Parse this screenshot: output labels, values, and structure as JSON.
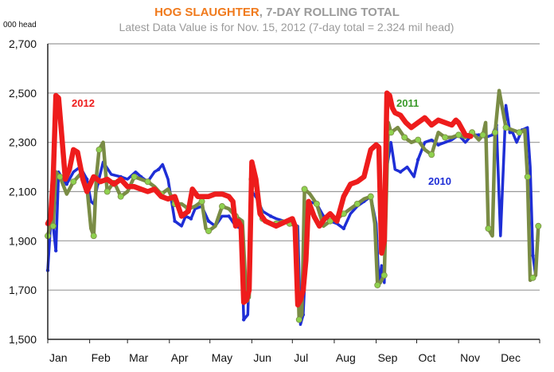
{
  "chart_data": {
    "type": "line",
    "title_part1": "HOG SLAUGHTER",
    "title_part2": ", 7-DAY ROLLING TOTAL",
    "subtitle": "Latest Data Value is for Nov. 15, 2012 (7-day total = 2.324 mil head)",
    "ylabel": "000 head",
    "ylim": [
      1500,
      2700
    ],
    "yticks": [
      "1,500",
      "1,700",
      "1,900",
      "2,100",
      "2,300",
      "2,500",
      "2,700"
    ],
    "ytick_values": [
      1500,
      1700,
      1900,
      2100,
      2300,
      2500,
      2700
    ],
    "months": [
      "Jan",
      "Feb",
      "Mar",
      "Apr",
      "May",
      "Jun",
      "Jul",
      "Aug",
      "Sep",
      "Oct",
      "Nov",
      "Dec"
    ],
    "xlim": [
      1,
      365
    ],
    "grid": true,
    "series": [
      {
        "name": "2010",
        "color": "#1e2ed6",
        "x": [
          1,
          3,
          5,
          7,
          9,
          12,
          15,
          20,
          25,
          30,
          33,
          35,
          38,
          42,
          48,
          55,
          60,
          66,
          70,
          75,
          80,
          83,
          86,
          90,
          95,
          100,
          103,
          107,
          110,
          115,
          120,
          125,
          130,
          135,
          140,
          144,
          146,
          149,
          152,
          155,
          160,
          163,
          166,
          170,
          176,
          182,
          186,
          188,
          190,
          194,
          200,
          205,
          210,
          215,
          220,
          225,
          230,
          235,
          240,
          244,
          246,
          248,
          250,
          252,
          255,
          258,
          262,
          267,
          272,
          275,
          280,
          285,
          290,
          295,
          300,
          305,
          310,
          315,
          320,
          325,
          330,
          333,
          336,
          340,
          343,
          345,
          348,
          352,
          356,
          358,
          360,
          362,
          364
        ],
        "y": [
          1780,
          1960,
          1960,
          1860,
          2180,
          2150,
          2130,
          2180,
          2200,
          2150,
          2060,
          2050,
          2130,
          2220,
          2170,
          2160,
          2150,
          2180,
          2160,
          2140,
          2180,
          2190,
          2210,
          2150,
          1980,
          1960,
          2000,
          1990,
          2030,
          2040,
          1980,
          1960,
          2000,
          2000,
          1960,
          1950,
          1580,
          1600,
          2100,
          2080,
          2020,
          2010,
          2000,
          1990,
          1980,
          1970,
          1960,
          1560,
          1600,
          2060,
          2050,
          2000,
          1980,
          1970,
          1950,
          2010,
          2040,
          2060,
          2080,
          1970,
          1720,
          1800,
          1730,
          2200,
          2300,
          2190,
          2180,
          2200,
          2160,
          2230,
          2300,
          2310,
          2290,
          2300,
          2310,
          2330,
          2300,
          2330,
          2330,
          2320,
          2330,
          2370,
          1920,
          2450,
          2340,
          2340,
          2300,
          2350,
          2360,
          2200,
          1840,
          1760,
          1960
        ]
      },
      {
        "name": "2011",
        "color": "#7a8c45",
        "marker_color": "#8fd14f",
        "x": [
          1,
          3,
          5,
          7,
          10,
          15,
          20,
          25,
          30,
          33,
          35,
          37,
          39,
          42,
          45,
          50,
          55,
          60,
          65,
          70,
          75,
          80,
          85,
          90,
          95,
          100,
          105,
          110,
          115,
          118,
          120,
          125,
          130,
          135,
          140,
          145,
          148,
          150,
          152,
          155,
          160,
          165,
          170,
          175,
          180,
          185,
          187,
          189,
          191,
          195,
          200,
          205,
          210,
          215,
          220,
          225,
          230,
          235,
          240,
          243,
          245,
          247,
          250,
          253,
          255,
          260,
          265,
          270,
          275,
          280,
          285,
          290,
          295,
          300,
          305,
          310,
          315,
          320,
          323,
          325,
          327,
          330,
          332,
          335,
          340,
          345,
          350,
          354,
          356,
          358,
          360,
          362,
          364
        ],
        "y": [
          1920,
          1970,
          1960,
          2180,
          2160,
          2090,
          2140,
          2170,
          2120,
          1950,
          1920,
          2160,
          2270,
          2300,
          2100,
          2140,
          2080,
          2100,
          2160,
          2150,
          2140,
          2120,
          2090,
          2110,
          2050,
          2050,
          2030,
          2040,
          2060,
          1950,
          1940,
          1960,
          2040,
          2030,
          2000,
          1980,
          1660,
          1670,
          2150,
          2120,
          1990,
          1970,
          1970,
          1980,
          1970,
          1960,
          1580,
          1600,
          2110,
          2090,
          2050,
          1960,
          1980,
          1990,
          2010,
          2030,
          2050,
          2070,
          2080,
          1970,
          1720,
          1730,
          1760,
          2380,
          2340,
          2360,
          2320,
          2300,
          2310,
          2270,
          2250,
          2340,
          2320,
          2320,
          2330,
          2320,
          2340,
          2310,
          2330,
          2380,
          1950,
          1920,
          2340,
          2510,
          2360,
          2350,
          2340,
          2350,
          2160,
          1740,
          1750,
          1760,
          1960
        ]
      },
      {
        "name": "2012",
        "color": "#ee1c1c",
        "x": [
          1,
          3,
          5,
          7,
          9,
          11,
          14,
          17,
          20,
          23,
          27,
          30,
          35,
          40,
          45,
          50,
          55,
          60,
          65,
          70,
          75,
          80,
          85,
          90,
          95,
          100,
          105,
          108,
          112,
          116,
          120,
          125,
          130,
          135,
          138,
          140,
          142,
          144,
          146,
          148,
          150,
          152,
          155,
          158,
          162,
          166,
          170,
          174,
          178,
          182,
          184,
          186,
          188,
          190,
          192,
          194,
          198,
          202,
          206,
          210,
          215,
          220,
          225,
          230,
          235,
          240,
          244,
          246,
          248,
          250,
          252,
          254,
          256,
          258,
          262,
          266,
          270,
          275,
          280,
          285,
          290,
          295,
          300,
          303,
          305,
          308,
          310,
          314
        ],
        "y": [
          1970,
          1990,
          2150,
          2490,
          2480,
          2350,
          2150,
          2190,
          2270,
          2260,
          2150,
          2100,
          2160,
          2140,
          2150,
          2130,
          2150,
          2120,
          2120,
          2110,
          2100,
          2110,
          2080,
          2070,
          2080,
          2000,
          2020,
          2110,
          2080,
          2080,
          2080,
          2090,
          2090,
          2080,
          2060,
          1960,
          1980,
          1960,
          1650,
          1660,
          1700,
          2220,
          2150,
          2010,
          1980,
          1970,
          1960,
          1970,
          1980,
          1990,
          1960,
          1640,
          1660,
          1700,
          1820,
          2060,
          2000,
          1960,
          1990,
          2010,
          1980,
          2080,
          2130,
          2140,
          2160,
          2270,
          2290,
          2280,
          1850,
          1900,
          2500,
          2490,
          2440,
          2420,
          2410,
          2380,
          2360,
          2380,
          2400,
          2370,
          2390,
          2380,
          2370,
          2390,
          2380,
          2350,
          2330,
          2324
        ]
      }
    ]
  }
}
